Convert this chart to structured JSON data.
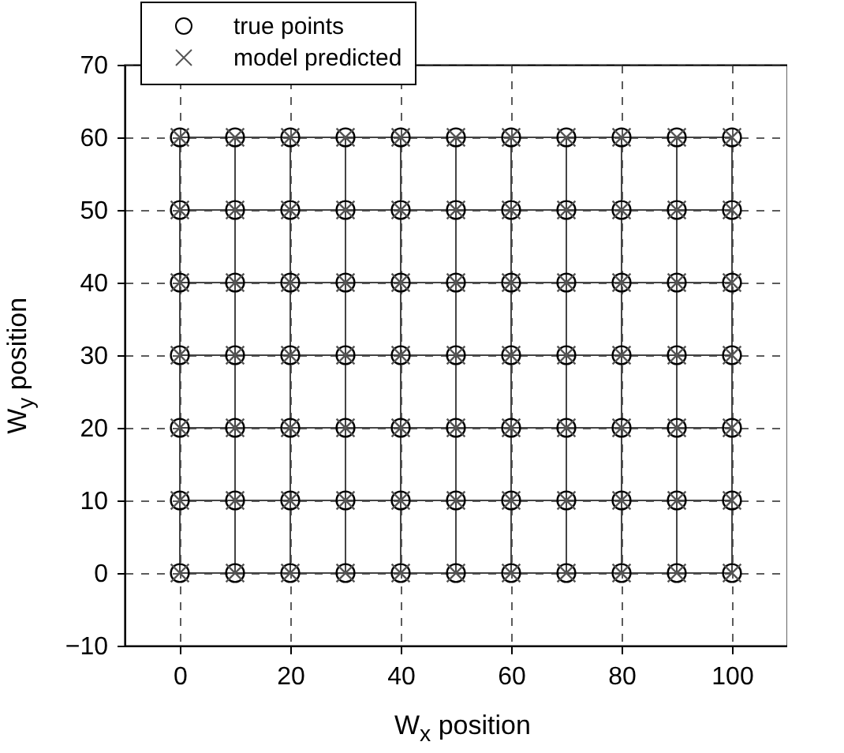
{
  "chart_data": {
    "type": "scatter",
    "xlabel": "W$_{x}$ position",
    "ylabel": "W$_{y}$ position",
    "xlim": [
      -10,
      110
    ],
    "ylim": [
      -10,
      70
    ],
    "xticks": [
      0,
      20,
      40,
      60,
      80,
      100
    ],
    "yticks": [
      -10,
      0,
      10,
      20,
      30,
      40,
      50,
      60,
      70
    ],
    "grid": true,
    "legend": "top left",
    "series": [
      {
        "name": "true points",
        "marker": "circle",
        "color": "#000000",
        "x": [
          0,
          10,
          20,
          30,
          40,
          50,
          60,
          70,
          80,
          90,
          100,
          0,
          10,
          20,
          30,
          40,
          50,
          60,
          70,
          80,
          90,
          100,
          0,
          10,
          20,
          30,
          40,
          50,
          60,
          70,
          80,
          90,
          100,
          0,
          10,
          20,
          30,
          40,
          50,
          60,
          70,
          80,
          90,
          100,
          0,
          10,
          20,
          30,
          40,
          50,
          60,
          70,
          80,
          90,
          100,
          0,
          10,
          20,
          30,
          40,
          50,
          60,
          70,
          80,
          90,
          100,
          0,
          10,
          20,
          30,
          40,
          50,
          60,
          70,
          80,
          90,
          100
        ],
        "values": [
          0,
          0,
          0,
          0,
          0,
          0,
          0,
          0,
          0,
          0,
          0,
          10,
          10,
          10,
          10,
          10,
          10,
          10,
          10,
          10,
          10,
          10,
          20,
          20,
          20,
          20,
          20,
          20,
          20,
          20,
          20,
          20,
          20,
          30,
          30,
          30,
          30,
          30,
          30,
          30,
          30,
          30,
          30,
          30,
          40,
          40,
          40,
          40,
          40,
          40,
          40,
          40,
          40,
          40,
          40,
          50,
          50,
          50,
          50,
          50,
          50,
          50,
          50,
          50,
          50,
          50,
          60,
          60,
          60,
          60,
          60,
          60,
          60,
          60,
          60,
          60,
          60
        ]
      },
      {
        "name": "model predicted",
        "marker": "cross",
        "color": "#555555",
        "x": [
          0,
          10,
          20,
          30,
          40,
          50,
          60,
          70,
          80,
          90,
          100,
          0,
          10,
          20,
          30,
          40,
          50,
          60,
          70,
          80,
          90,
          100,
          0,
          10,
          20,
          30,
          40,
          50,
          60,
          70,
          80,
          90,
          100,
          0,
          10,
          20,
          30,
          40,
          50,
          60,
          70,
          80,
          90,
          100,
          0,
          10,
          20,
          30,
          40,
          50,
          60,
          70,
          80,
          90,
          100,
          0,
          10,
          20,
          30,
          40,
          50,
          60,
          70,
          80,
          90,
          100,
          0,
          10,
          20,
          30,
          40,
          50,
          60,
          70,
          80,
          90,
          100
        ],
        "values": [
          0,
          0,
          0,
          0,
          0,
          0,
          0,
          0,
          0,
          0,
          0,
          10,
          10,
          10,
          10,
          10,
          10,
          10,
          10,
          10,
          10,
          10,
          20,
          20,
          20,
          20,
          20,
          20,
          20,
          20,
          20,
          20,
          20,
          30,
          30,
          30,
          30,
          30,
          30,
          30,
          30,
          30,
          30,
          30,
          40,
          40,
          40,
          40,
          40,
          40,
          40,
          40,
          40,
          40,
          40,
          50,
          50,
          50,
          50,
          50,
          50,
          50,
          50,
          50,
          50,
          50,
          60,
          60,
          60,
          60,
          60,
          60,
          60,
          60,
          60,
          60,
          60
        ]
      },
      {
        "type": "line",
        "color": "#444444",
        "x": [
          0,
          10,
          20,
          30,
          40,
          50,
          60,
          70,
          80,
          90,
          100
        ],
        "values": [
          0,
          0,
          0,
          0,
          0,
          0,
          0,
          0,
          0,
          0,
          0
        ]
      },
      {
        "type": "line",
        "color": "#444444",
        "x": [
          0,
          10,
          20,
          30,
          40,
          50,
          60,
          70,
          80,
          90,
          100
        ],
        "values": [
          10,
          10,
          10,
          10,
          10,
          10,
          10,
          10,
          10,
          10,
          10
        ]
      },
      {
        "type": "line",
        "color": "#444444",
        "x": [
          0,
          10,
          20,
          30,
          40,
          50,
          60,
          70,
          80,
          90,
          100
        ],
        "values": [
          20,
          20,
          20,
          20,
          20,
          20,
          20,
          20,
          20,
          20,
          20
        ]
      },
      {
        "type": "line",
        "color": "#444444",
        "x": [
          0,
          10,
          20,
          30,
          40,
          50,
          60,
          70,
          80,
          90,
          100
        ],
        "values": [
          30,
          30,
          30,
          30,
          30,
          30,
          30,
          30,
          30,
          30,
          30
        ]
      },
      {
        "type": "line",
        "color": "#444444",
        "x": [
          0,
          10,
          20,
          30,
          40,
          50,
          60,
          70,
          80,
          90,
          100
        ],
        "values": [
          40,
          40,
          40,
          40,
          40,
          40,
          40,
          40,
          40,
          40,
          40
        ]
      },
      {
        "type": "line",
        "color": "#444444",
        "x": [
          0,
          10,
          20,
          30,
          40,
          50,
          60,
          70,
          80,
          90,
          100
        ],
        "values": [
          50,
          50,
          50,
          50,
          50,
          50,
          50,
          50,
          50,
          50,
          50
        ]
      },
      {
        "type": "line",
        "color": "#444444",
        "x": [
          0,
          10,
          20,
          30,
          40,
          50,
          60,
          70,
          80,
          90,
          100
        ],
        "values": [
          60,
          60,
          60,
          60,
          60,
          60,
          60,
          60,
          60,
          60,
          60
        ]
      },
      {
        "type": "line",
        "color": "#444444",
        "x": [
          0,
          0,
          0,
          0,
          0,
          0,
          0
        ],
        "values": [
          0,
          10,
          20,
          30,
          40,
          50,
          60
        ]
      },
      {
        "type": "line",
        "color": "#444444",
        "x": [
          10,
          10,
          10,
          10,
          10,
          10,
          10
        ],
        "values": [
          0,
          10,
          20,
          30,
          40,
          50,
          60
        ]
      },
      {
        "type": "line",
        "color": "#444444",
        "x": [
          20,
          20,
          20,
          20,
          20,
          20,
          20
        ],
        "values": [
          0,
          10,
          20,
          30,
          40,
          50,
          60
        ]
      },
      {
        "type": "line",
        "color": "#444444",
        "x": [
          30,
          30,
          30,
          30,
          30,
          30,
          30
        ],
        "values": [
          0,
          10,
          20,
          30,
          40,
          50,
          60
        ]
      },
      {
        "type": "line",
        "color": "#444444",
        "x": [
          40,
          40,
          40,
          40,
          40,
          40,
          40
        ],
        "values": [
          0,
          10,
          20,
          30,
          40,
          50,
          60
        ]
      },
      {
        "type": "line",
        "color": "#444444",
        "x": [
          50,
          50,
          50,
          50,
          50,
          50,
          50
        ],
        "values": [
          0,
          10,
          20,
          30,
          40,
          50,
          60
        ]
      },
      {
        "type": "line",
        "color": "#444444",
        "x": [
          60,
          60,
          60,
          60,
          60,
          60,
          60
        ],
        "values": [
          0,
          10,
          20,
          30,
          40,
          50,
          60
        ]
      },
      {
        "type": "line",
        "color": "#444444",
        "x": [
          70,
          70,
          70,
          70,
          70,
          70,
          70
        ],
        "values": [
          0,
          10,
          20,
          30,
          40,
          50,
          60
        ]
      },
      {
        "type": "line",
        "color": "#444444",
        "x": [
          80,
          80,
          80,
          80,
          80,
          80,
          80
        ],
        "values": [
          0,
          10,
          20,
          30,
          40,
          50,
          60
        ]
      },
      {
        "type": "line",
        "color": "#444444",
        "x": [
          90,
          90,
          90,
          90,
          90,
          90,
          90
        ],
        "values": [
          0,
          10,
          20,
          30,
          40,
          50,
          60
        ]
      },
      {
        "type": "line",
        "color": "#444444",
        "x": [
          100,
          100,
          100,
          100,
          100,
          100,
          100
        ],
        "values": [
          0,
          10,
          20,
          30,
          40,
          50,
          60
        ]
      }
    ]
  }
}
